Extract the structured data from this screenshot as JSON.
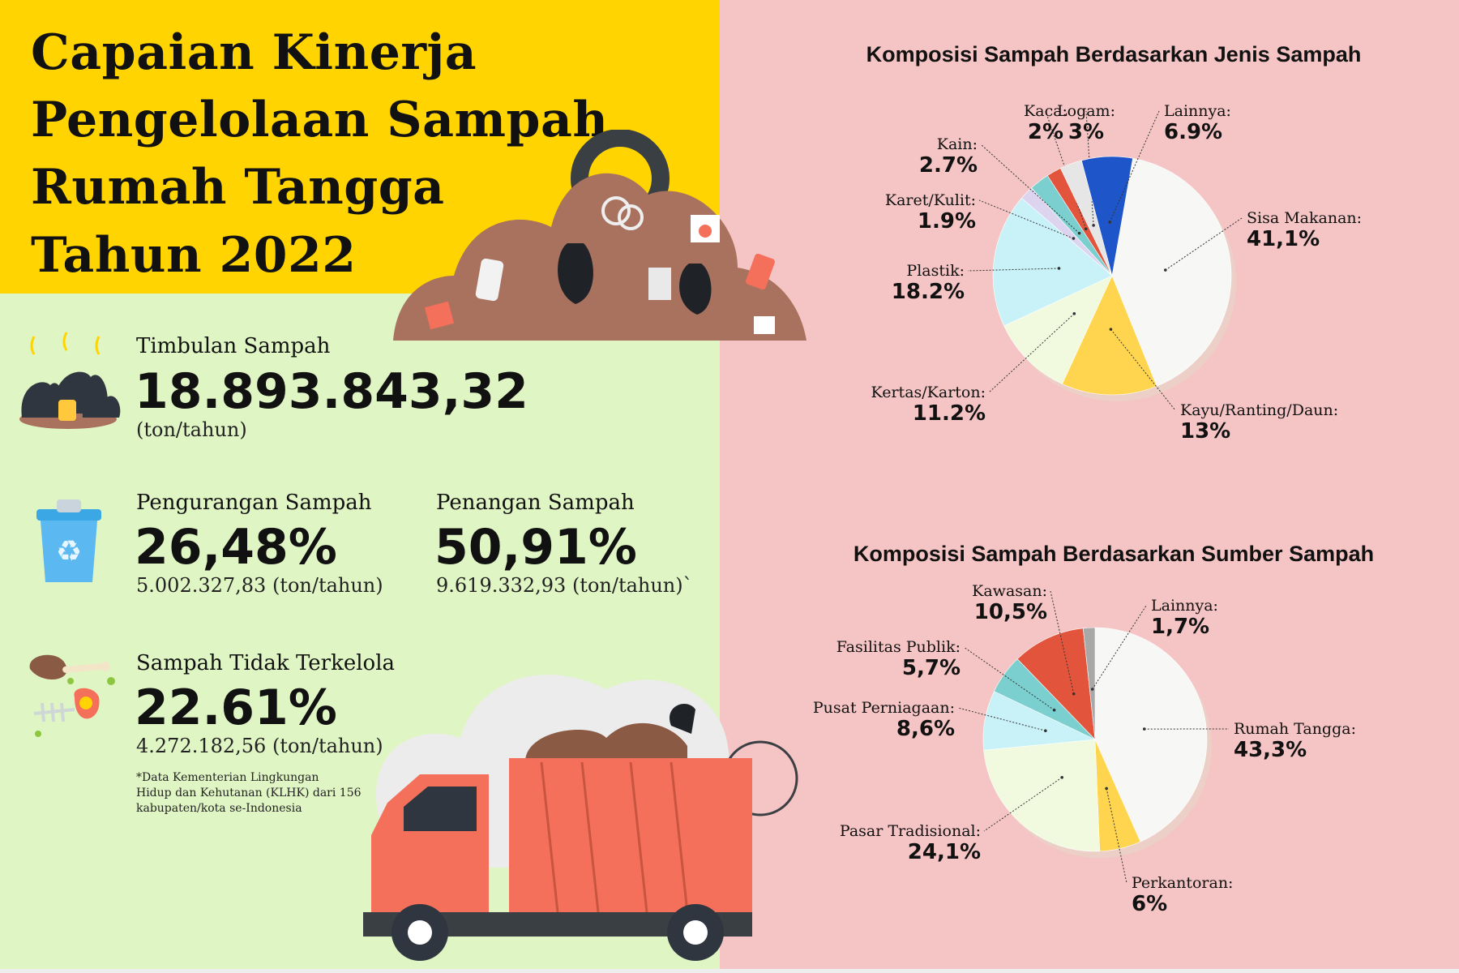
{
  "title": {
    "line1": "Capaian Kinerja",
    "line2": "Pengelolaan Sampah",
    "line3": "Rumah Tangga",
    "line4": "Tahun 2022"
  },
  "stats": {
    "timbulan": {
      "label": "Timbulan Sampah",
      "value": "18.893.843,32",
      "unit": "(ton/tahun)"
    },
    "pengurangan": {
      "label": "Pengurangan Sampah",
      "value": "26,48%",
      "unit": "5.002.327,83 (ton/tahun)"
    },
    "penanganan": {
      "label": "Penangan Sampah",
      "value": "50,91%",
      "unit": "9.619.332,93 (ton/tahun)`"
    },
    "tidak_terkelola": {
      "label": "Sampah Tidak Terkelola",
      "value": "22.61%",
      "unit": "4.272.182,56 (ton/tahun)"
    }
  },
  "footnote": {
    "line1": "*Data Kementerian Lingkungan",
    "line2": "Hidup dan Kehutanan (KLHK) dari 156",
    "line3": "kabupaten/kota se-Indonesia"
  },
  "colors": {
    "yellow": "#FFD400",
    "green": "#E0F5C4",
    "pink": "#F5C4C4",
    "truck": "#F4705A"
  },
  "chart_data": [
    {
      "type": "pie",
      "title": "Komposisi Sampah Berdasarkan Jenis  Sampah",
      "categories": [
        "Sisa Makanan:",
        "Kayu/Ranting/Daun:",
        "Kertas/Karton:",
        "Plastik:",
        "Karet/Kulit:",
        "Kain:",
        "Kaca:",
        "Logam:",
        "Lainnya:"
      ],
      "values": [
        41.1,
        13,
        11.2,
        18.2,
        1.9,
        2.7,
        2,
        3,
        6.9
      ],
      "value_labels": [
        "41,1%",
        "13%",
        "11.2%",
        "18.2%",
        "1.9%",
        "2.7%",
        "2%",
        "3%",
        "6.9%"
      ],
      "colors": [
        "#F7F7F5",
        "#FFD54F",
        "#F1FADF",
        "#C8F2F7",
        "#DDD5F0",
        "#7CCFCF",
        "#E2553C",
        "#E6E6E6",
        "#1E56C9"
      ]
    },
    {
      "type": "pie",
      "title": "Komposisi Sampah Berdasarkan Sumber Sampah",
      "categories": [
        "Rumah Tangga:",
        "Perkantoran:",
        "Pasar Tradisional:",
        "Pusat Perniagaan:",
        "Fasilitas Publik:",
        "Kawasan:",
        "Lainnya:"
      ],
      "values": [
        43.3,
        6,
        24.1,
        8.6,
        5.7,
        10.5,
        1.7
      ],
      "value_labels": [
        "43,3%",
        "6%",
        "24,1%",
        "8,6%",
        "5,7%",
        "10,5%",
        "1,7%"
      ],
      "colors": [
        "#F7F7F5",
        "#FFD54F",
        "#F1FADF",
        "#C8F2F7",
        "#7CCFCF",
        "#E2553C",
        "#A8A8A8"
      ]
    }
  ]
}
